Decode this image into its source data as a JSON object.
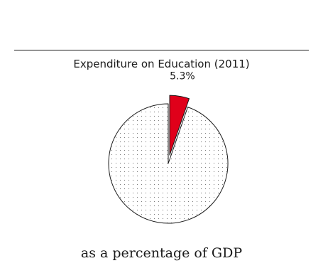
{
  "chart_data": {
    "type": "pie",
    "title": "Expenditure on Education (2011)",
    "caption": "as a percentage of GDP",
    "slices": [
      {
        "value": 5.3,
        "label": "5.3%",
        "exploded": true
      },
      {
        "value": 94.7,
        "label": "",
        "exploded": false
      }
    ],
    "colors": {
      "highlight": "#e0001a",
      "rest_fill": "#ffffff",
      "dot": "#7a7a7a",
      "stroke": "#1a1a1a"
    }
  }
}
